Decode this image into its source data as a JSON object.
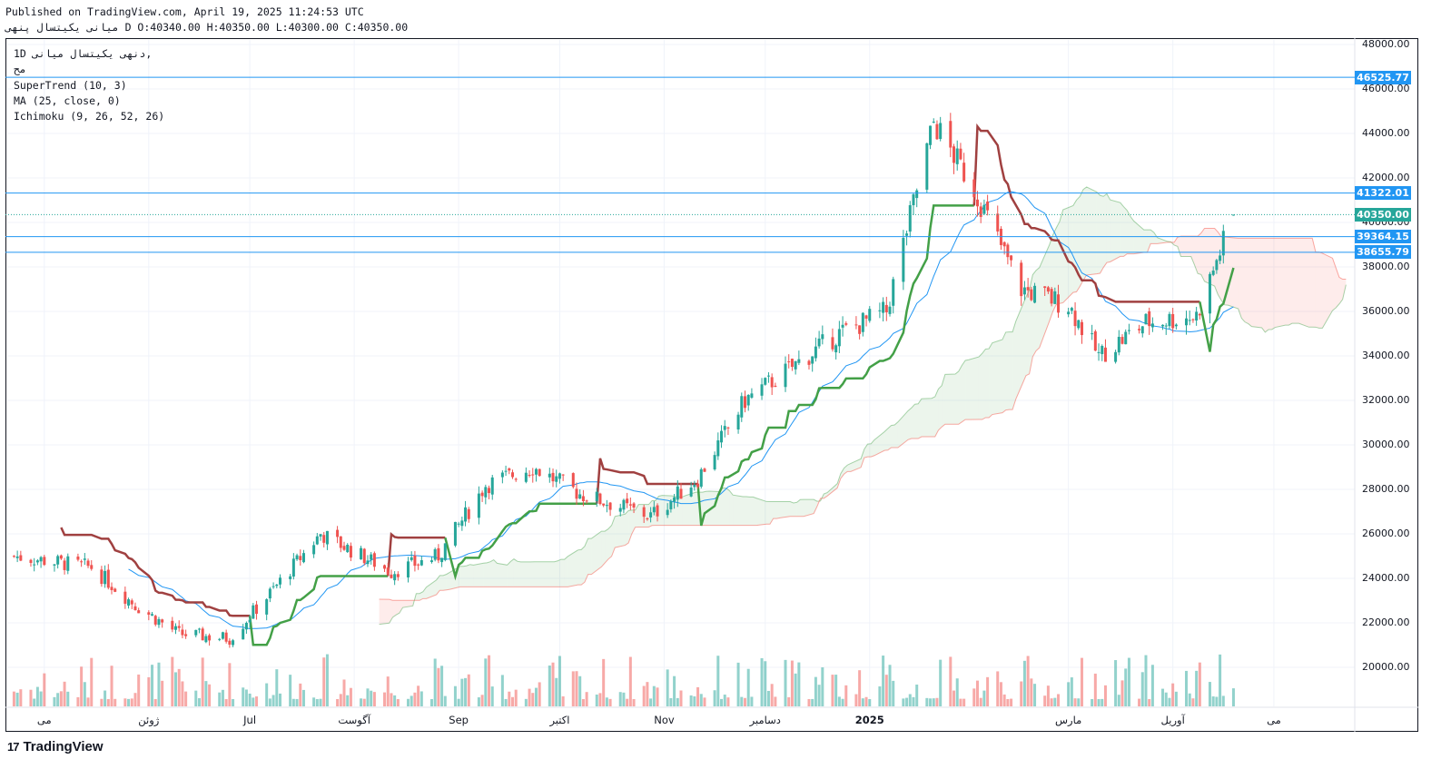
{
  "header": {
    "published": "Published on TradingView.com, April 19, 2025 11:24:53 UTC",
    "ohlc": "پنهی D O:40340.00 H:40350.00 L:40300.00 C:40350.00",
    "symbol_prefix": "میانی  یکیتسال"
  },
  "legend": {
    "line1": "1D  دنهی   یکیتسال  میانی,",
    "line2": "مح",
    "indicator1": "SuperTrend (10, 3)",
    "indicator2": "MA (25, close, 0)",
    "indicator3": "Ichimoku (9, 26, 52, 26)"
  },
  "price_badges": [
    {
      "label": "46525.77",
      "color": "#2196f3"
    },
    {
      "label": "41322.01",
      "color": "#2196f3"
    },
    {
      "label": "40350.00",
      "color": "#26a69a"
    },
    {
      "label": "39364.15",
      "color": "#2196f3"
    },
    {
      "label": "38655.79",
      "color": "#2196f3"
    }
  ],
  "branding": {
    "logo": "17",
    "name": "TradingView"
  },
  "chart_data": {
    "type": "candlestick",
    "symbol_interval": "1D",
    "indicators": [
      "SuperTrend (10, 3)",
      "MA (25, close, 0)",
      "Ichimoku (9, 26, 52, 26)"
    ],
    "ylim": [
      18000,
      48000
    ],
    "y_ticks": [
      "48000.00",
      "46000.00",
      "44000.00",
      "42000.00",
      "40000.00",
      "38000.00",
      "36000.00",
      "34000.00",
      "32000.00",
      "30000.00",
      "28000.00",
      "26000.00",
      "24000.00",
      "22000.00",
      "20000.00"
    ],
    "x_ticks": [
      {
        "label": "می",
        "bold": false
      },
      {
        "label": "ژوئن",
        "bold": false
      },
      {
        "label": "Jul",
        "bold": false
      },
      {
        "label": "آگوست",
        "bold": false
      },
      {
        "label": "Sep",
        "bold": false
      },
      {
        "label": "اکتبر",
        "bold": false
      },
      {
        "label": "Nov",
        "bold": false
      },
      {
        "label": "دسامبر",
        "bold": false
      },
      {
        "label": "2025",
        "bold": true
      },
      {
        "label": "مارس",
        "bold": false
      },
      {
        "label": "آوریل",
        "bold": false
      },
      {
        "label": "می",
        "bold": false
      }
    ],
    "horizontal_levels": [
      46525.77,
      41322.01,
      39364.15,
      38655.79
    ],
    "last_close": 40350.0,
    "close_path": [
      {
        "date": "2024-04-22",
        "close": 25000
      },
      {
        "date": "2024-05-15",
        "close": 24500
      },
      {
        "date": "2024-05-28",
        "close": 22800
      },
      {
        "date": "2024-06-10",
        "close": 21500
      },
      {
        "date": "2024-06-25",
        "close": 21300
      },
      {
        "date": "2024-07-08",
        "close": 23500
      },
      {
        "date": "2024-07-22",
        "close": 26000
      },
      {
        "date": "2024-08-12",
        "close": 24300
      },
      {
        "date": "2024-08-26",
        "close": 25000
      },
      {
        "date": "2024-09-09",
        "close": 28200
      },
      {
        "date": "2024-09-23",
        "close": 29000
      },
      {
        "date": "2024-10-07",
        "close": 27800
      },
      {
        "date": "2024-10-28",
        "close": 26800
      },
      {
        "date": "2024-11-11",
        "close": 28500
      },
      {
        "date": "2024-11-25",
        "close": 32000
      },
      {
        "date": "2024-12-09",
        "close": 33500
      },
      {
        "date": "2024-12-23",
        "close": 35000
      },
      {
        "date": "2025-01-06",
        "close": 36000
      },
      {
        "date": "2025-01-20",
        "close": 44500
      },
      {
        "date": "2025-02-01",
        "close": 41500
      },
      {
        "date": "2025-02-15",
        "close": 37000
      },
      {
        "date": "2025-03-01",
        "close": 36300
      },
      {
        "date": "2025-03-10",
        "close": 34000
      },
      {
        "date": "2025-03-24",
        "close": 35500
      },
      {
        "date": "2025-04-08",
        "close": 35800
      },
      {
        "date": "2025-04-19",
        "close": 40350
      }
    ]
  }
}
